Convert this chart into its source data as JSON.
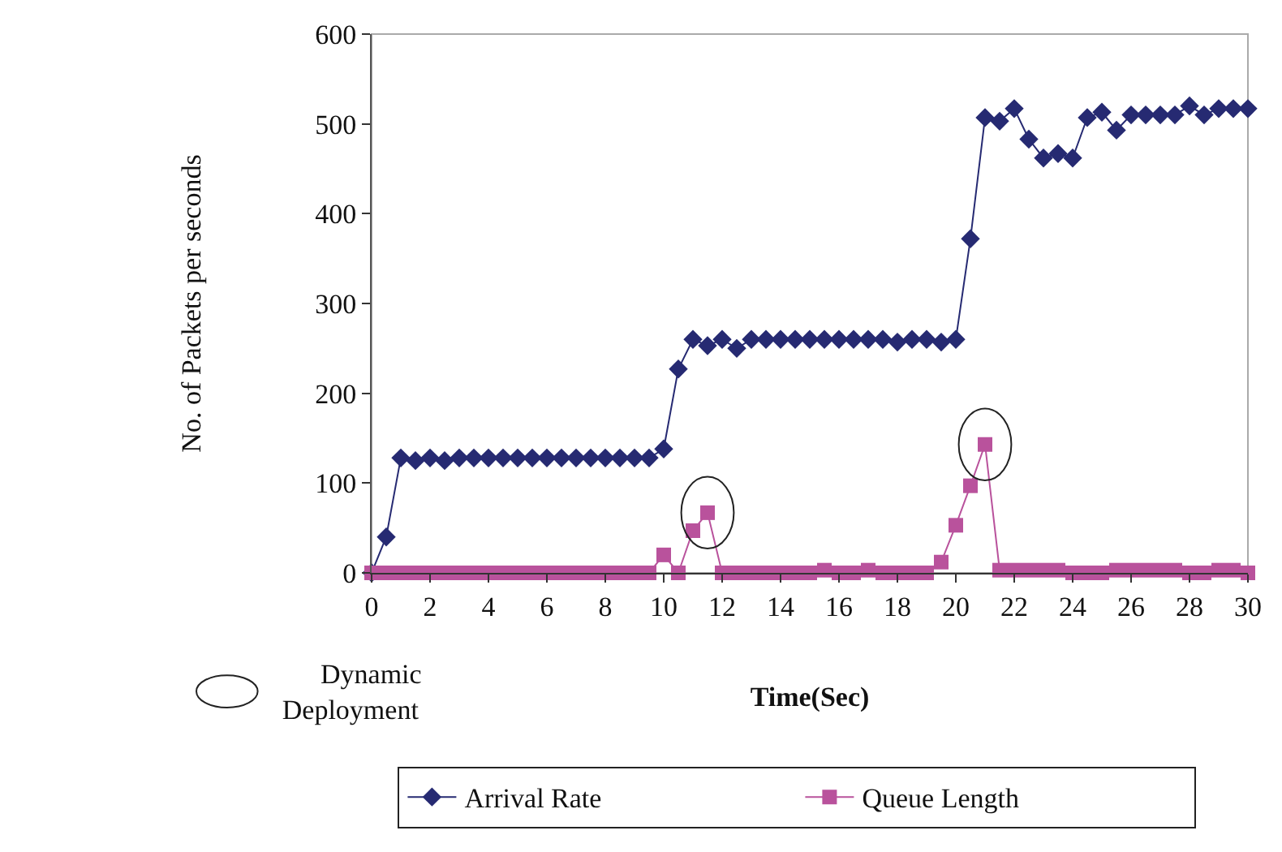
{
  "chart_data": {
    "type": "line",
    "xlabel": "Time(Sec)",
    "ylabel": "No. of Packets per seconds",
    "x": [
      0,
      0.5,
      1,
      1.5,
      2,
      2.5,
      3,
      3.5,
      4,
      4.5,
      5,
      5.5,
      6,
      6.5,
      7,
      7.5,
      8,
      8.5,
      9,
      9.5,
      10,
      10.5,
      11,
      11.5,
      12,
      12.5,
      13,
      13.5,
      14,
      14.5,
      15,
      15.5,
      16,
      16.5,
      17,
      17.5,
      18,
      18.5,
      19,
      19.5,
      20,
      20.5,
      21,
      21.5,
      22,
      22.5,
      23,
      23.5,
      24,
      24.5,
      25,
      25.5,
      26,
      26.5,
      27,
      27.5,
      28,
      28.5,
      29,
      29.5,
      30
    ],
    "series": [
      {
        "name": "Arrival Rate",
        "color": "#262a72",
        "marker": "diamond",
        "values": [
          0,
          40,
          128,
          125,
          128,
          125,
          128,
          128,
          128,
          128,
          128,
          128,
          128,
          128,
          128,
          128,
          128,
          128,
          128,
          128,
          138,
          227,
          260,
          253,
          260,
          250,
          260,
          260,
          260,
          260,
          260,
          260,
          260,
          260,
          260,
          260,
          257,
          260,
          260,
          257,
          260,
          372,
          507,
          503,
          517,
          483,
          462,
          467,
          462,
          507,
          513,
          493,
          510,
          510,
          510,
          510,
          520,
          510,
          517,
          517,
          517
        ]
      },
      {
        "name": "Queue Length",
        "color": "#b9529c",
        "marker": "square",
        "values": [
          0,
          0,
          0,
          0,
          0,
          0,
          0,
          0,
          0,
          0,
          0,
          0,
          0,
          0,
          0,
          0,
          0,
          0,
          0,
          0,
          20,
          0,
          47,
          67,
          0,
          0,
          0,
          0,
          0,
          0,
          0,
          3,
          0,
          0,
          3,
          0,
          0,
          0,
          0,
          12,
          53,
          97,
          143,
          3,
          3,
          3,
          3,
          3,
          0,
          0,
          0,
          3,
          3,
          3,
          3,
          3,
          0,
          0,
          3,
          3,
          0
        ]
      }
    ],
    "xlim": [
      0,
      30
    ],
    "xticks": [
      0,
      2,
      4,
      6,
      8,
      10,
      12,
      14,
      16,
      18,
      20,
      22,
      24,
      26,
      28,
      30
    ],
    "ylim": [
      0,
      600
    ],
    "yticks": [
      0,
      100,
      200,
      300,
      400,
      500,
      600
    ],
    "grid": false,
    "legend": "bottom",
    "line_style": "solid",
    "annotations": [
      "Dynamic Deployment"
    ]
  }
}
